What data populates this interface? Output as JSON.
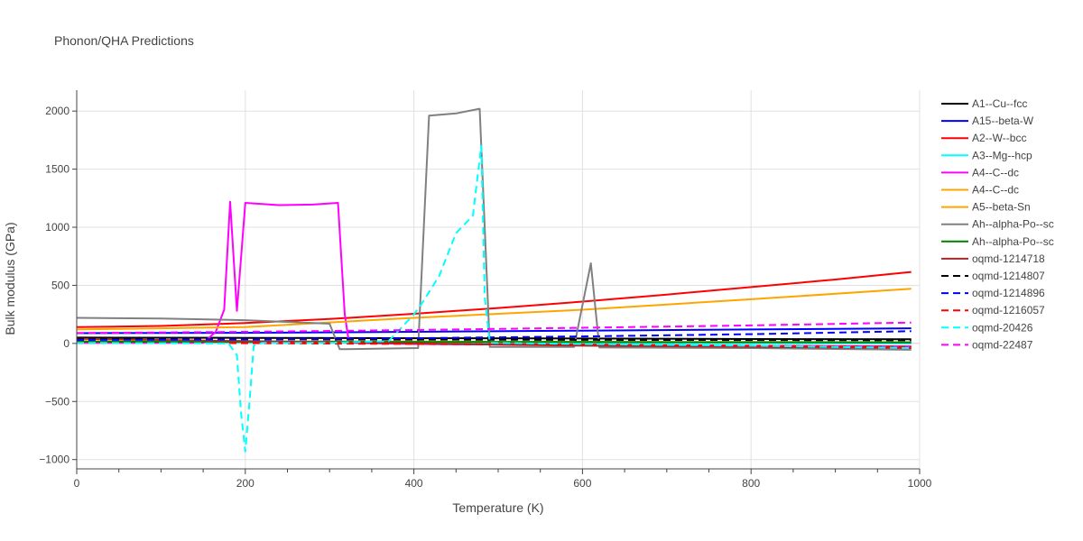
{
  "chart_data": {
    "type": "line",
    "title": "Phonon/QHA Predictions",
    "xlabel": "Temperature (K)",
    "ylabel": "Bulk modulus (GPa)",
    "xlim": [
      0,
      1000
    ],
    "ylim": [
      -1080,
      2180
    ],
    "xticks": [
      0,
      200,
      400,
      600,
      800,
      1000
    ],
    "yticks": [
      -1000,
      -500,
      0,
      500,
      1000,
      1500,
      2000
    ],
    "xtick_labels": [
      "0",
      "200",
      "400",
      "600",
      "800",
      "1000"
    ],
    "ytick_labels": [
      "−1000",
      "−500",
      "0",
      "500",
      "1000",
      "1500",
      "2000"
    ],
    "grid": true,
    "legend_position": "right",
    "series": [
      {
        "name": "A1--Cu--fcc",
        "color": "#000000",
        "dash": "solid",
        "x": [
          0,
          200,
          400,
          600,
          800,
          990
        ],
        "y": [
          50,
          48,
          45,
          42,
          38,
          35
        ]
      },
      {
        "name": "A15--beta-W",
        "color": "#0000ff",
        "dash": "solid",
        "x": [
          0,
          200,
          400,
          600,
          800,
          990
        ],
        "y": [
          88,
          91,
          100,
          110,
          120,
          130
        ]
      },
      {
        "name": "A2--W--bcc",
        "color": "#ff0000",
        "dash": "solid",
        "x": [
          0,
          100,
          200,
          300,
          400,
          500,
          600,
          700,
          800,
          900,
          990
        ],
        "y": [
          140,
          150,
          175,
          210,
          255,
          305,
          360,
          420,
          485,
          550,
          615
        ]
      },
      {
        "name": "A3--Mg--hcp",
        "color": "#00ffff",
        "dash": "solid",
        "x": [
          0,
          200,
          400,
          600,
          800,
          990
        ],
        "y": [
          10,
          8,
          6,
          4,
          2,
          0
        ]
      },
      {
        "name": "A4--C--dc",
        "color": "#ff00ff",
        "dash": "solid",
        "x": [
          0,
          150,
          165,
          175,
          182,
          190,
          200,
          210,
          240,
          280,
          300,
          310,
          318,
          323,
          400,
          500,
          600,
          800,
          990
        ],
        "y": [
          5,
          5,
          100,
          290,
          1220,
          280,
          1210,
          1205,
          1190,
          1195,
          1205,
          1210,
          250,
          5,
          -5,
          -10,
          -15,
          -20,
          -25
        ]
      },
      {
        "name": "A4--C--dc",
        "color": "#ffa500",
        "dash": "solid",
        "x": [
          0,
          200,
          400,
          600,
          800,
          990
        ],
        "y": [
          120,
          140,
          220,
          290,
          380,
          470
        ]
      },
      {
        "name": "A5--beta-Sn",
        "color": "#ffa500",
        "dash": "solid",
        "x": [
          0,
          200,
          400,
          600,
          800,
          990
        ],
        "y": [
          20,
          18,
          16,
          14,
          12,
          10
        ]
      },
      {
        "name": "Ah--alpha-Po--sc",
        "color": "#808080",
        "dash": "solid",
        "x": [
          0,
          100,
          200,
          300,
          312,
          320,
          405,
          418,
          450,
          478,
          490,
          590,
          610,
          620,
          800,
          990
        ],
        "y": [
          220,
          215,
          200,
          170,
          -50,
          -50,
          -40,
          1960,
          1980,
          2020,
          -30,
          -30,
          690,
          -35,
          -40,
          -55
        ]
      },
      {
        "name": "Ah--alpha-Po--sc",
        "color": "#008000",
        "dash": "solid",
        "x": [
          0,
          200,
          400,
          600,
          800,
          990
        ],
        "y": [
          15,
          14,
          13,
          12,
          10,
          8
        ]
      },
      {
        "name": "oqmd-1214718",
        "color": "#a52a2a",
        "dash": "solid",
        "x": [
          0,
          200,
          400,
          600,
          800,
          990
        ],
        "y": [
          40,
          20,
          0,
          -20,
          -30,
          -40
        ]
      },
      {
        "name": "oqmd-1214807",
        "color": "#000000",
        "dash": "dash",
        "x": [
          0,
          200,
          400,
          600,
          800,
          990
        ],
        "y": [
          35,
          35,
          33,
          31,
          29,
          27
        ]
      },
      {
        "name": "oqmd-1214896",
        "color": "#0000ff",
        "dash": "dash",
        "x": [
          0,
          200,
          400,
          600,
          800,
          990
        ],
        "y": [
          30,
          35,
          45,
          60,
          80,
          105
        ]
      },
      {
        "name": "oqmd-1216057",
        "color": "#ff0000",
        "dash": "dash",
        "x": [
          0,
          200,
          400,
          600,
          800,
          990
        ],
        "y": [
          5,
          2,
          -5,
          -10,
          -20,
          -30
        ]
      },
      {
        "name": "oqmd-20426",
        "color": "#00ffff",
        "dash": "dash",
        "x": [
          0,
          180,
          190,
          195,
          200,
          205,
          210,
          220,
          300,
          370,
          400,
          410,
          430,
          450,
          470,
          475,
          480,
          484,
          490,
          600,
          800,
          990
        ],
        "y": [
          5,
          0,
          -100,
          -600,
          -930,
          -500,
          -20,
          5,
          5,
          20,
          250,
          350,
          580,
          950,
          1100,
          1400,
          1700,
          400,
          5,
          -5,
          -20,
          -40
        ]
      },
      {
        "name": "oqmd-22487",
        "color": "#ff00ff",
        "dash": "dash",
        "x": [
          0,
          200,
          400,
          600,
          800,
          990
        ],
        "y": [
          90,
          100,
          115,
          135,
          155,
          180
        ]
      }
    ]
  }
}
